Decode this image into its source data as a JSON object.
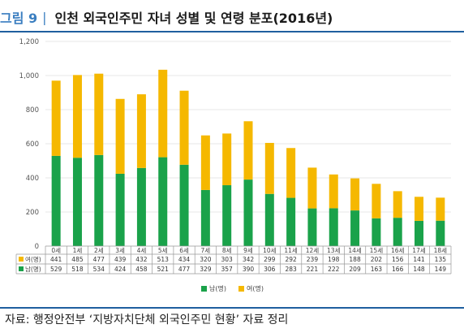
{
  "figure": {
    "number": "그림 9",
    "separator": "|",
    "title": "인천 외국인주민 자녀 성별 및 연령 분포(2016년)"
  },
  "source": "자료: 행정안전부 ‘지방자치단체 외국인주민 현황’ 자료 정리",
  "colors": {
    "male": "#1aa24a",
    "female": "#f5b800",
    "axis": "#999999",
    "grid": "#cfcfcf"
  },
  "chart_data": {
    "type": "bar",
    "stacked": true,
    "categories": [
      "0세",
      "1세",
      "2세",
      "3세",
      "4세",
      "5세",
      "6세",
      "7세",
      "8세",
      "9세",
      "10세",
      "11세",
      "12세",
      "13세",
      "14세",
      "15세",
      "16세",
      "17세",
      "18세"
    ],
    "series": [
      {
        "name": "남(명)",
        "key": "male",
        "values": [
          529,
          518,
          534,
          424,
          458,
          521,
          477,
          329,
          357,
          390,
          306,
          283,
          221,
          222,
          209,
          163,
          166,
          148,
          149
        ]
      },
      {
        "name": "여(명)",
        "key": "female",
        "values": [
          441,
          485,
          477,
          439,
          432,
          513,
          434,
          320,
          303,
          342,
          299,
          292,
          239,
          198,
          188,
          202,
          156,
          141,
          135
        ]
      }
    ],
    "ylim": [
      0,
      1200
    ],
    "yticks": [
      "0",
      "200",
      "400",
      "600",
      "800",
      "1,000",
      "1,200"
    ],
    "legend_position": "bottom",
    "data_table": true
  }
}
